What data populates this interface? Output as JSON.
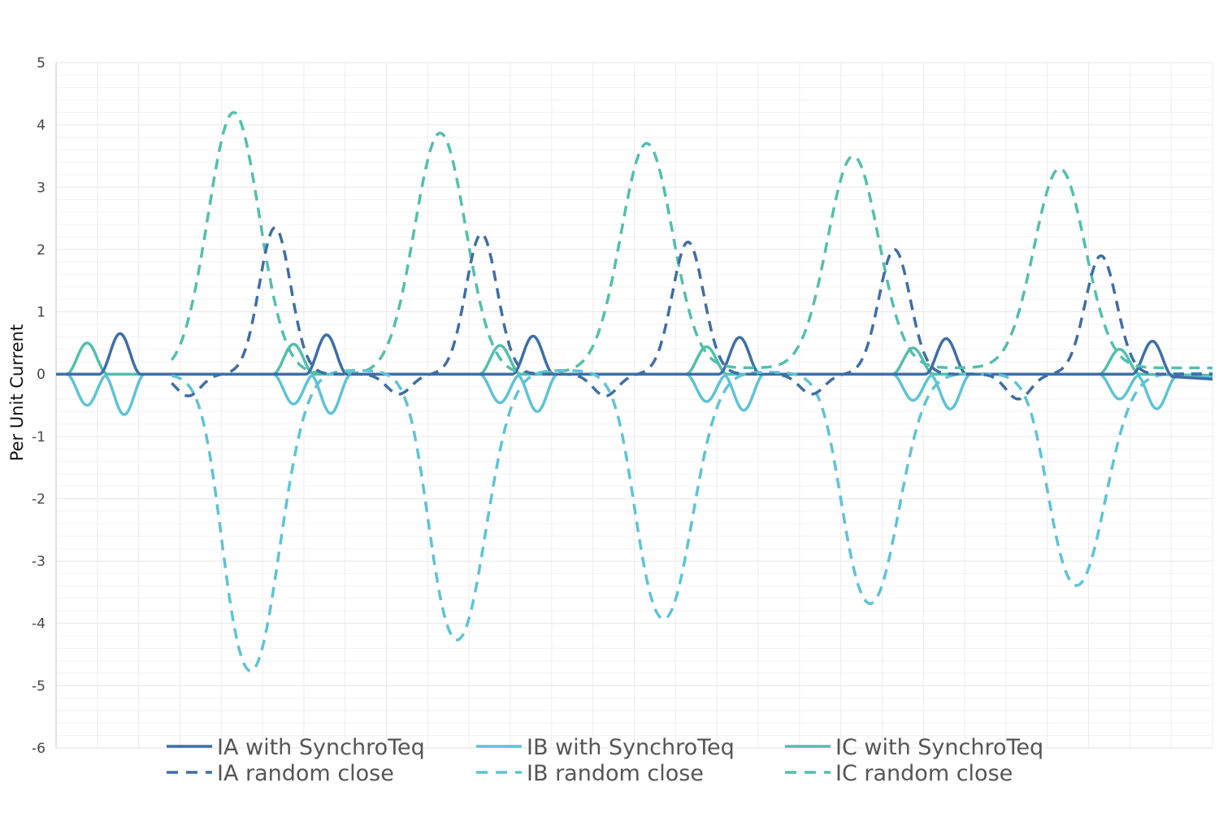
{
  "chart_data": {
    "type": "line",
    "title": "",
    "xlabel": "",
    "ylabel": "Per Unit Current",
    "ylim": [
      -6,
      5
    ],
    "yticks": [
      5,
      4,
      3,
      2,
      1,
      0,
      -1,
      -2,
      -3,
      -4,
      -5,
      -6
    ],
    "ytick_labels": [
      "5",
      "4",
      "3",
      "2",
      "1",
      "0",
      "-1",
      "-2",
      "-3",
      "-4",
      "-5",
      "-6"
    ],
    "x_range": [
      0,
      28
    ],
    "x_unit": "cycles",
    "grid": true,
    "legend_position": "bottom",
    "series": [
      {
        "name": "IA with SynchroTeq",
        "style": "solid",
        "color": "#3f6ea6",
        "pulses": [
          {
            "x": 1.55,
            "peak": 0.65
          },
          {
            "x": 6.55,
            "peak": 0.63
          },
          {
            "x": 11.55,
            "peak": 0.61
          },
          {
            "x": 16.55,
            "peak": 0.59
          },
          {
            "x": 21.55,
            "peak": 0.57
          },
          {
            "x": 26.55,
            "peak": 0.55
          }
        ],
        "end_value": -0.08
      },
      {
        "name": "IB with SynchroTeq",
        "style": "solid",
        "color": "#5ec3d6",
        "pulses": [
          {
            "x": 0.75,
            "peak": -0.5
          },
          {
            "x": 1.65,
            "peak": -0.65
          },
          {
            "x": 5.75,
            "peak": -0.48
          },
          {
            "x": 6.65,
            "peak": -0.63
          },
          {
            "x": 10.75,
            "peak": -0.46
          },
          {
            "x": 11.65,
            "peak": -0.6
          },
          {
            "x": 15.75,
            "peak": -0.44
          },
          {
            "x": 16.65,
            "peak": -0.58
          },
          {
            "x": 20.75,
            "peak": -0.42
          },
          {
            "x": 21.65,
            "peak": -0.56
          },
          {
            "x": 25.75,
            "peak": -0.4
          },
          {
            "x": 26.65,
            "peak": -0.54
          }
        ],
        "end_value": -0.05
      },
      {
        "name": "IC with SynchroTeq",
        "style": "solid",
        "color": "#52bfac",
        "pulses": [
          {
            "x": 0.75,
            "peak": 0.5
          },
          {
            "x": 5.75,
            "peak": 0.48
          },
          {
            "x": 10.75,
            "peak": 0.46
          },
          {
            "x": 15.75,
            "peak": 0.44
          },
          {
            "x": 20.75,
            "peak": 0.42
          },
          {
            "x": 25.75,
            "peak": 0.4
          }
        ],
        "end_value": -0.02
      },
      {
        "name": "IA random close",
        "style": "dashed",
        "color": "#3f6ea6",
        "peaks": [
          {
            "x": 5.3,
            "y": 2.35
          },
          {
            "x": 10.3,
            "y": 2.25
          },
          {
            "x": 15.3,
            "y": 2.12
          },
          {
            "x": 20.3,
            "y": 2.0
          },
          {
            "x": 25.3,
            "y": 1.9
          }
        ],
        "troughs": [
          {
            "x": 3.2,
            "y": -0.35
          },
          {
            "x": 8.3,
            "y": -0.32
          },
          {
            "x": 13.3,
            "y": -0.35
          },
          {
            "x": 18.3,
            "y": -0.32
          },
          {
            "x": 23.3,
            "y": -0.4
          }
        ]
      },
      {
        "name": "IB random close",
        "style": "dashed",
        "color": "#5ec3d6",
        "troughs": [
          {
            "x": 4.8,
            "y": -4.9
          },
          {
            "x": 9.8,
            "y": -4.45
          },
          {
            "x": 14.8,
            "y": -4.1
          },
          {
            "x": 19.8,
            "y": -3.8
          },
          {
            "x": 24.8,
            "y": -3.5
          }
        ]
      },
      {
        "name": "IC random close",
        "style": "dashed",
        "color": "#52bfac",
        "peaks": [
          {
            "x": 4.3,
            "y": 4.2
          },
          {
            "x": 9.3,
            "y": 3.87
          },
          {
            "x": 14.3,
            "y": 3.62
          },
          {
            "x": 19.3,
            "y": 3.4
          },
          {
            "x": 24.3,
            "y": 3.2
          }
        ]
      }
    ]
  },
  "legend": {
    "items": [
      {
        "label": "IA with SynchroTeq",
        "color": "#3f6ea6",
        "style": "solid"
      },
      {
        "label": "IB with SynchroTeq",
        "color": "#5ec3d6",
        "style": "solid"
      },
      {
        "label": "IC with SynchroTeq",
        "color": "#52bfac",
        "style": "solid"
      },
      {
        "label": "IA random close",
        "color": "#3f6ea6",
        "style": "dashed"
      },
      {
        "label": "IB random close",
        "color": "#5ec3d6",
        "style": "dashed"
      },
      {
        "label": "IC random close",
        "color": "#52bfac",
        "style": "dashed"
      }
    ]
  }
}
